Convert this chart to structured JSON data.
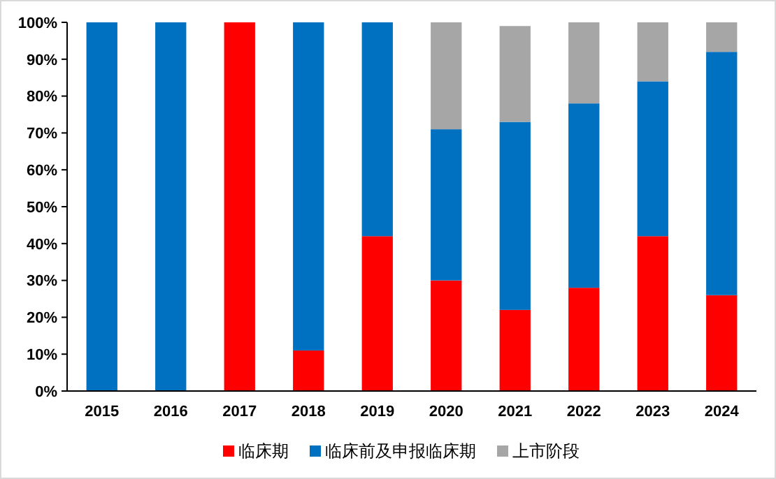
{
  "chart_data": {
    "type": "bar",
    "stacked": true,
    "categories": [
      "2015",
      "2016",
      "2017",
      "2018",
      "2019",
      "2020",
      "2021",
      "2022",
      "2023",
      "2024"
    ],
    "series": [
      {
        "name": "临床期",
        "color": "#ff0000",
        "values": [
          0,
          0,
          100,
          11,
          42,
          30,
          22,
          28,
          42,
          26
        ]
      },
      {
        "name": "临床前及申报临床期",
        "color": "#0070c0",
        "values": [
          100,
          100,
          0,
          89,
          58,
          41,
          51,
          50,
          42,
          66
        ]
      },
      {
        "name": "上市阶段",
        "color": "#a6a6a6",
        "values": [
          0,
          0,
          0,
          0,
          0,
          29,
          26,
          22,
          16,
          8
        ]
      }
    ],
    "ylim": [
      0,
      100
    ],
    "yticks": [
      {
        "value": 0,
        "label": "0%"
      },
      {
        "value": 10,
        "label": "10%"
      },
      {
        "value": 20,
        "label": "20%"
      },
      {
        "value": 30,
        "label": "30%"
      },
      {
        "value": 40,
        "label": "40%"
      },
      {
        "value": 50,
        "label": "50%"
      },
      {
        "value": 60,
        "label": "60%"
      },
      {
        "value": 70,
        "label": "70%"
      },
      {
        "value": 80,
        "label": "80%"
      },
      {
        "value": 90,
        "label": "90%"
      },
      {
        "value": 100,
        "label": "100%"
      }
    ],
    "legend": "bottom"
  }
}
